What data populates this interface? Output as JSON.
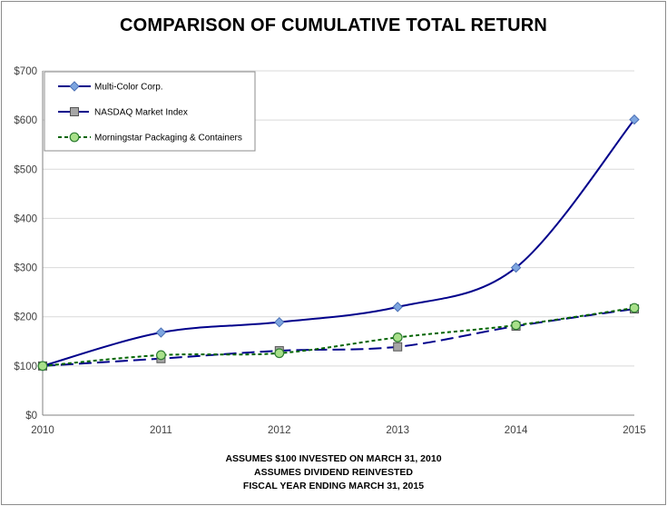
{
  "colors": {
    "multicolor": "#00008b",
    "multicolor_marker": "#7ea6e0",
    "nasdaq": "#00008b",
    "nasdaq_marker": "#a6a6a6",
    "morningstar": "#006400",
    "morningstar_marker": "#a8e08a",
    "grid": "#d9d9d9"
  },
  "footnotes": [
    "ASSUMES $100 INVESTED ON MARCH 31, 2010",
    "ASSUMES DIVIDEND REINVESTED",
    "FISCAL YEAR ENDING MARCH 31, 2015"
  ],
  "chart_data": {
    "type": "line",
    "title": "COMPARISON OF CUMULATIVE TOTAL RETURN",
    "xlabel": "",
    "ylabel": "",
    "x": [
      "2010",
      "2011",
      "2012",
      "2013",
      "2014",
      "2015"
    ],
    "ylim": [
      0,
      700
    ],
    "yticks": [
      "$0",
      "$100",
      "$200",
      "$300",
      "$400",
      "$500",
      "$600",
      "$700"
    ],
    "grid": true,
    "legend_position": "top-left",
    "series": [
      {
        "name": "Multi-Color Corp.",
        "marker": "diamond",
        "style": "solid",
        "values": [
          100,
          168,
          189,
          220,
          300,
          601
        ]
      },
      {
        "name": "NASDAQ Market Index",
        "marker": "square",
        "style": "dashed",
        "values": [
          100,
          115,
          131,
          139,
          181,
          216
        ]
      },
      {
        "name": "Morningstar Packaging & Containers",
        "marker": "circle",
        "style": "dotted",
        "values": [
          100,
          122,
          126,
          158,
          183,
          218
        ]
      }
    ]
  }
}
